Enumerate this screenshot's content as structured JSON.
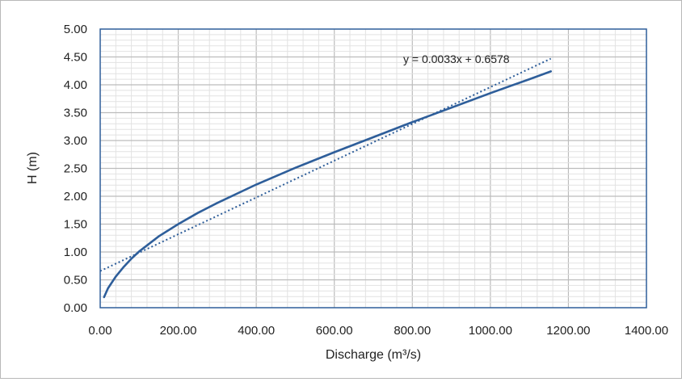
{
  "chart_data": {
    "type": "line",
    "title": "",
    "xlabel": "Discharge (m³/s)",
    "ylabel": "H (m)",
    "xlim": [
      0,
      1400
    ],
    "ylim": [
      0,
      5
    ],
    "x_ticks": [
      "0.00",
      "200.00",
      "400.00",
      "600.00",
      "800.00",
      "1000.00",
      "1200.00",
      "1400.00"
    ],
    "y_ticks": [
      "0.00",
      "0.50",
      "1.00",
      "1.50",
      "2.00",
      "2.50",
      "3.00",
      "3.50",
      "4.00",
      "4.50",
      "5.00"
    ],
    "grid": true,
    "series": [
      {
        "style": "solid",
        "color": "#2e5e9a",
        "x": [
          10,
          20,
          40,
          60,
          80,
          100,
          150,
          200,
          250,
          300,
          400,
          500,
          600,
          700,
          800,
          900,
          1000,
          1100,
          1155
        ],
        "y": [
          0.19,
          0.35,
          0.56,
          0.73,
          0.88,
          1.01,
          1.28,
          1.5,
          1.7,
          1.88,
          2.21,
          2.51,
          2.79,
          3.06,
          3.33,
          3.59,
          3.85,
          4.1,
          4.24
        ]
      },
      {
        "style": "dotted",
        "color": "#2e5e9a",
        "trendline": {
          "slope": 0.0033,
          "intercept": 0.6578
        },
        "x": [
          0,
          1155
        ],
        "y": [
          0.6578,
          4.4693
        ]
      }
    ],
    "annotations": [
      {
        "text": "y = 0.0033x + 0.6578"
      }
    ]
  }
}
